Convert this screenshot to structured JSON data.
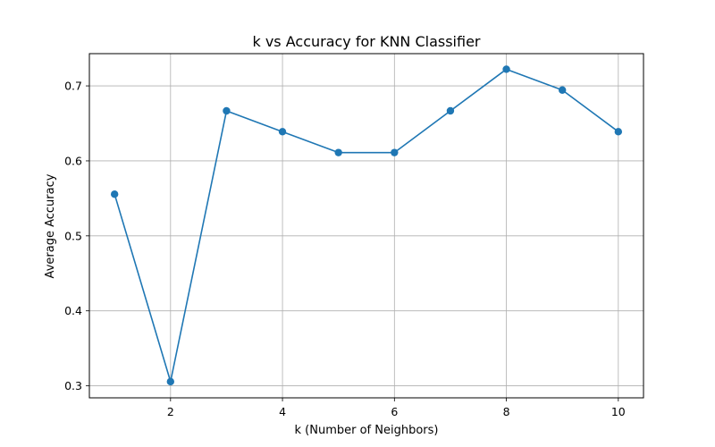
{
  "chart_data": {
    "type": "line",
    "title": "k vs Accuracy for KNN Classifier",
    "xlabel": "k (Number of Neighbors)",
    "ylabel": "Average Accuracy",
    "x": [
      1,
      2,
      3,
      4,
      5,
      6,
      7,
      8,
      9,
      10
    ],
    "series": [
      {
        "values": [
          0.5556,
          0.3056,
          0.6667,
          0.6389,
          0.6111,
          0.6111,
          0.6667,
          0.7222,
          0.6944,
          0.6389
        ]
      }
    ],
    "xlim": [
      0.55,
      10.45
    ],
    "ylim": [
      0.284,
      0.743
    ],
    "xticks": [
      2,
      4,
      6,
      8,
      10
    ],
    "yticks": [
      0.3,
      0.4,
      0.5,
      0.6,
      0.7
    ],
    "grid": true,
    "marker": "circle",
    "colors": {
      "line": "#1f77b4",
      "grid": "#b0b0b0",
      "axes": "#000000"
    }
  }
}
